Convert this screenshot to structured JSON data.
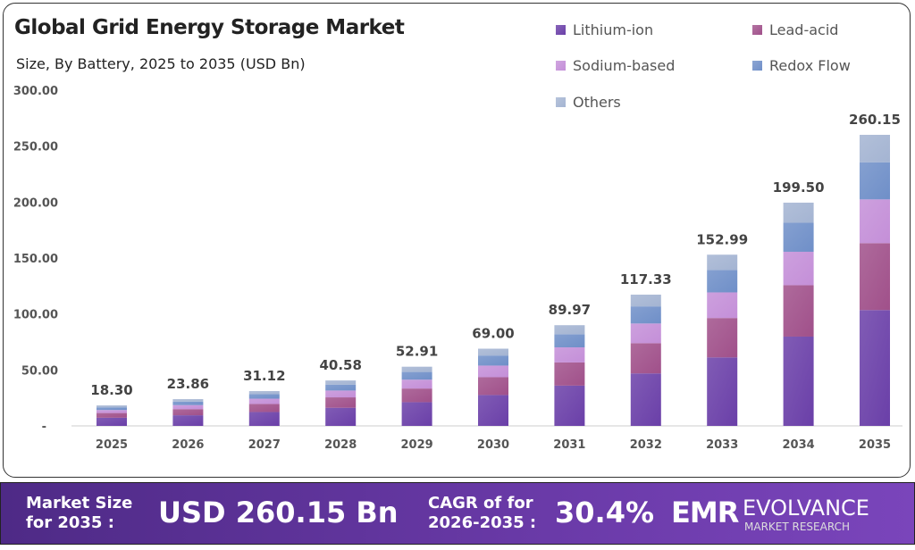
{
  "title": "Global Grid Energy Storage Market",
  "subtitle": "Size, By Battery, 2025 to 2035 (USD Bn)",
  "chart_data": {
    "type": "bar",
    "stacked": true,
    "title": "Global Grid Energy Storage Market",
    "subtitle": "Size, By Battery, 2025 to 2035 (USD Bn)",
    "categories": [
      "2025",
      "2026",
      "2027",
      "2028",
      "2029",
      "2030",
      "2031",
      "2032",
      "2033",
      "2034",
      "2035"
    ],
    "ylim": [
      0,
      300
    ],
    "yticks": [
      "-",
      "50.00",
      "100.00",
      "150.00",
      "200.00",
      "250.00",
      "300.00"
    ],
    "grid": false,
    "legend_position": "top-right",
    "totals": [
      "18.30",
      "23.86",
      "31.12",
      "40.58",
      "52.91",
      "69.00",
      "89.97",
      "117.33",
      "152.99",
      "199.50",
      "260.15"
    ],
    "series": [
      {
        "name": "Lithium-ion",
        "color": "#6a3fa8",
        "values": [
          7.3,
          9.5,
          12.4,
          16.2,
          21.2,
          27.6,
          36.0,
          46.9,
          61.2,
          79.8,
          103.5
        ]
      },
      {
        "name": "Lead-acid",
        "color": "#a0508a",
        "values": [
          4.2,
          5.5,
          7.2,
          9.3,
          12.2,
          15.9,
          20.7,
          27.0,
          35.2,
          45.9,
          59.8
        ]
      },
      {
        "name": "Sodium-based",
        "color": "#c48fd8",
        "values": [
          2.7,
          3.6,
          4.7,
          6.1,
          7.9,
          10.4,
          13.5,
          17.6,
          22.9,
          29.9,
          39.1
        ]
      },
      {
        "name": "Redox Flow",
        "color": "#6f8fc8",
        "values": [
          2.4,
          3.1,
          4.0,
          5.3,
          6.9,
          9.0,
          11.7,
          15.3,
          19.9,
          25.9,
          33.2
        ]
      },
      {
        "name": "Others",
        "color": "#a4b4d2",
        "values": [
          1.7,
          2.2,
          2.8,
          3.7,
          4.7,
          6.1,
          8.1,
          10.5,
          13.8,
          18.0,
          24.5
        ]
      }
    ]
  },
  "footer": {
    "market_size_label_1": "Market Size",
    "market_size_label_2": "for 2035 :",
    "market_size_value": "USD 260.15 Bn",
    "cagr_label_1": "CAGR of for",
    "cagr_label_2": "2026-2035 :",
    "cagr_value": "30.4%",
    "logo_mark": "EMR",
    "logo_name": "EVOLVANCE",
    "logo_sub": "MARKET RESEARCH"
  }
}
